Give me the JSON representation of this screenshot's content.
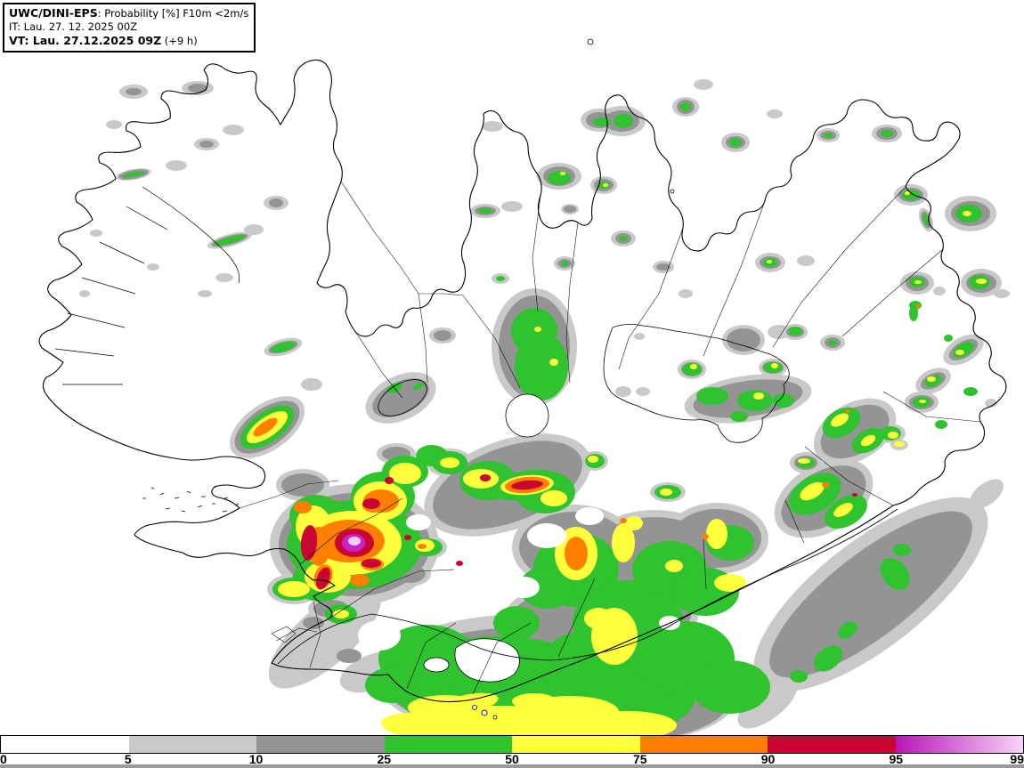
{
  "header": {
    "model": "UWC/DINI-EPS",
    "product_with_sep": ": Probability [%] F10m <2m/s",
    "it_line": "IT: Lau. 27. 12. 2025 00Z",
    "vt_bold": "VT: Lau. 27.12.2025 09Z",
    "vt_suffix": " (+9 h)"
  },
  "colorbar": {
    "levels": [
      "0",
      "5",
      "10",
      "25",
      "50",
      "75",
      "90",
      "95",
      "99"
    ],
    "segments": [
      {
        "range": "0-5",
        "color": "#ffffff"
      },
      {
        "range": "5-10",
        "color": "#c9c9c9"
      },
      {
        "range": "10-25",
        "color": "#949494"
      },
      {
        "range": "25-50",
        "color": "#2fc32f"
      },
      {
        "range": "50-75",
        "color": "#ffff3b"
      },
      {
        "range": "75-90",
        "color": "#ff7f00"
      },
      {
        "range": "90-95",
        "color": "#c90534"
      },
      {
        "range": "95-99",
        "color": "#b816b8",
        "gradient_to": "#f7d4f7"
      }
    ]
  },
  "palette": {
    "prob_5": "#c9c9c9",
    "prob_10": "#949494",
    "prob_25": "#2fc32f",
    "prob_50": "#ffff3b",
    "prob_75": "#ff7f00",
    "prob_90": "#c90534",
    "prob_95": "#c822c8",
    "prob_99_core": "#f6c9f6"
  },
  "chart_data": {
    "type": "heatmap",
    "title": "UWC/DINI-EPS: Probability [%] F10m <2m/s",
    "init_time": "IT: Lau. 27. 12. 2025 00Z",
    "valid_time": "VT: Lau. 27.12.2025 09Z (+9 h)",
    "lead_hours": 9,
    "variable": "Probability that 10 m wind speed (F10m) is below 2 m/s",
    "unit": "%",
    "region": "Iceland",
    "levels": [
      0,
      5,
      10,
      25,
      50,
      75,
      90,
      95,
      99
    ],
    "level_colors": [
      "#ffffff",
      "#c9c9c9",
      "#949494",
      "#2fc32f",
      "#ffff3b",
      "#ff7f00",
      "#c90534",
      "#b816b8-#f7d4f7"
    ],
    "colorbar_orientation": "horizontal-bottom",
    "grid": false,
    "max_probability_area": {
      "area": "Southwest Iceland, inland of Reykjavík (Hengill/Þingvellir area)",
      "value_range": "95-99 %"
    },
    "notable_areas": [
      {
        "area": "Southwest inland cluster",
        "probability": "75-99 %",
        "colors": "orange/red cores with magenta-pink maximum"
      },
      {
        "area": "West (Borgarfjörður) diagonal streak",
        "probability": "50-90 %"
      },
      {
        "area": "Central band south of Hofsjökull",
        "probability": "50-95 %",
        "colors": "yellow with red streak"
      },
      {
        "area": "South coast and southern highlands",
        "probability": "25-75 %",
        "colors": "broad green with yellow band along the coast"
      },
      {
        "area": "Southeast diagonal offshore band",
        "probability": "10-50 %",
        "colors": "dark gray with embedded green patches"
      },
      {
        "area": "East fjords valley chain",
        "probability": "25-75 %",
        "colors": "green blobs with yellow cores"
      },
      {
        "area": "North and northeast scattered spots",
        "probability": "25-60 %"
      },
      {
        "area": "Westfjords",
        "probability": "0-25 %",
        "colors": "mostly white with small gray patches"
      }
    ]
  }
}
